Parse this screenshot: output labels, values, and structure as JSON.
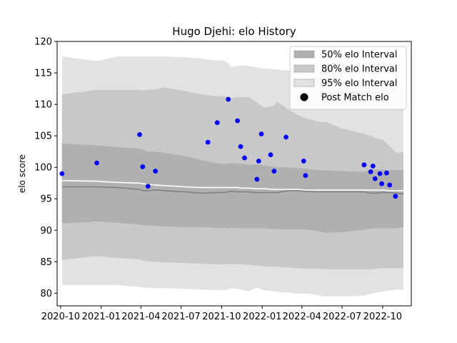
{
  "chart_data": {
    "type": "area",
    "title": "Hugo Djehi: elo History",
    "xlabel": "",
    "ylabel": "elo score",
    "ylim": [
      78,
      120
    ],
    "xlim": [
      "2020-09-23",
      "2022-12-05"
    ],
    "yticks": [
      80,
      85,
      90,
      95,
      100,
      105,
      110,
      115,
      120
    ],
    "xticks": [
      {
        "date": "2020-10-01",
        "label": "2020-10"
      },
      {
        "date": "2021-01-01",
        "label": "2021-01"
      },
      {
        "date": "2021-04-01",
        "label": "2021-04"
      },
      {
        "date": "2021-07-01",
        "label": "2021-07"
      },
      {
        "date": "2021-10-01",
        "label": "2021-10"
      },
      {
        "date": "2022-01-01",
        "label": "2022-01"
      },
      {
        "date": "2022-04-01",
        "label": "2022-04"
      },
      {
        "date": "2022-07-01",
        "label": "2022-07"
      },
      {
        "date": "2022-10-01",
        "label": "2022-10"
      }
    ],
    "legend_position": "upper right",
    "legend": [
      {
        "label": "50% elo Interval",
        "kind": "patch",
        "color": "#b0b0b0"
      },
      {
        "label": "80% elo Interval",
        "kind": "patch",
        "color": "#c8c8c8"
      },
      {
        "label": "95% elo Interval",
        "kind": "patch",
        "color": "#e2e2e2"
      },
      {
        "label": "Post Match elo",
        "kind": "marker",
        "color": "#000000"
      }
    ],
    "colors": {
      "band50": "#b0b0b0",
      "band80": "#c8c8c8",
      "band95": "#e2e2e2",
      "median_line": "#808080",
      "mean_line": "#ffffff",
      "points": "#0000ff"
    },
    "bands": {
      "x": [
        "2020-10-04",
        "2020-12-22",
        "2021-02-06",
        "2021-03-29",
        "2021-04-05",
        "2021-04-17",
        "2021-05-04",
        "2021-05-25",
        "2021-07-10",
        "2021-08-15",
        "2021-09-15",
        "2021-10-08",
        "2021-10-16",
        "2021-10-23",
        "2021-11-06",
        "2021-11-13",
        "2021-12-01",
        "2021-12-20",
        "2022-01-05",
        "2022-01-25",
        "2022-02-05",
        "2022-03-01",
        "2022-03-20",
        "2022-04-10",
        "2022-05-05",
        "2022-05-25",
        "2022-07-01",
        "2022-08-20",
        "2022-09-04",
        "2022-09-15",
        "2022-10-01",
        "2022-10-15",
        "2022-11-01",
        "2022-11-17"
      ],
      "p95_upper": [
        117.6,
        116.9,
        117.6,
        117.6,
        117.6,
        117.6,
        117.6,
        117.6,
        117.5,
        117.3,
        117.0,
        116.9,
        116.5,
        115.9,
        116.1,
        116.2,
        116.1,
        115.9,
        115.7,
        115.6,
        115.5,
        115.4,
        115.0,
        114.8,
        114.3,
        114.3,
        114.2,
        114.0,
        113.8,
        113.9,
        113.8,
        113.8,
        113.8,
        113.7
      ],
      "p95_lower": [
        81.3,
        81.3,
        81.3,
        81.0,
        80.9,
        80.9,
        80.8,
        80.8,
        80.7,
        80.6,
        80.5,
        80.5,
        80.6,
        80.8,
        80.7,
        80.6,
        80.3,
        80.9,
        80.5,
        80.3,
        80.2,
        80.1,
        79.9,
        80.0,
        79.7,
        79.5,
        79.5,
        79.6,
        79.9,
        80.1,
        80.3,
        80.4,
        80.6,
        80.6
      ],
      "p80_upper": [
        111.6,
        112.3,
        112.3,
        112.3,
        112.2,
        112.3,
        112.4,
        112.7,
        112.1,
        111.6,
        111.3,
        111.3,
        111.2,
        111.0,
        111.2,
        111.1,
        111.2,
        110.3,
        109.5,
        109.7,
        110.4,
        109.2,
        108.4,
        107.8,
        107.3,
        107.2,
        106.2,
        105.3,
        105.0,
        104.6,
        104.4,
        103.5,
        102.3,
        102.4
      ],
      "p80_lower": [
        85.3,
        85.9,
        85.6,
        85.4,
        85.2,
        85.1,
        85.0,
        84.9,
        84.8,
        84.7,
        84.6,
        84.6,
        84.6,
        84.7,
        84.6,
        84.6,
        84.5,
        84.4,
        84.3,
        84.2,
        84.2,
        84.1,
        84.0,
        83.9,
        83.9,
        83.8,
        83.8,
        83.8,
        83.8,
        83.9,
        84.0,
        84.0,
        84.0,
        84.0
      ],
      "p50_upper": [
        103.8,
        103.5,
        103.2,
        103.0,
        102.8,
        102.5,
        102.5,
        102.3,
        101.8,
        101.2,
        100.7,
        100.5,
        100.6,
        100.7,
        100.6,
        100.6,
        100.4,
        100.5,
        100.3,
        100.1,
        100.0,
        100.0,
        99.9,
        99.8,
        99.6,
        99.5,
        99.4,
        99.3,
        99.6,
        99.7,
        99.6,
        99.6,
        99.6,
        99.6
      ],
      "p50_lower": [
        91.1,
        91.4,
        91.2,
        90.9,
        90.8,
        90.8,
        90.7,
        90.6,
        90.5,
        90.5,
        90.4,
        90.4,
        90.3,
        90.4,
        90.4,
        90.3,
        90.3,
        90.3,
        90.3,
        90.2,
        90.2,
        90.1,
        90.2,
        90.1,
        89.9,
        89.6,
        89.7,
        90.1,
        90.3,
        90.3,
        90.3,
        90.3,
        90.3,
        90.5
      ],
      "median": [
        96.9,
        96.9,
        96.8,
        96.5,
        96.3,
        96.3,
        96.4,
        96.3,
        96.1,
        95.9,
        96.0,
        96.0,
        96.1,
        96.2,
        96.1,
        96.1,
        96.1,
        96.0,
        96.0,
        96.0,
        96.0,
        96.3,
        96.3,
        96.2,
        96.1,
        96.1,
        96.1,
        96.1,
        95.9,
        95.9,
        96.0,
        96.0,
        95.9,
        95.8
      ],
      "mean": [
        97.9,
        97.8,
        97.6,
        97.5,
        97.4,
        97.3,
        97.2,
        97.1,
        96.9,
        96.8,
        96.8,
        96.8,
        96.8,
        96.8,
        96.8,
        96.7,
        96.7,
        96.6,
        96.6,
        96.5,
        96.5,
        96.5,
        96.5,
        96.4,
        96.4,
        96.4,
        96.4,
        96.4,
        96.4,
        96.4,
        96.4,
        96.3,
        96.3,
        96.3
      ]
    },
    "points": [
      {
        "x": "2020-10-04",
        "y": 99.0
      },
      {
        "x": "2020-12-22",
        "y": 100.7
      },
      {
        "x": "2021-03-29",
        "y": 105.2
      },
      {
        "x": "2021-04-05",
        "y": 100.1
      },
      {
        "x": "2021-04-17",
        "y": 97.0
      },
      {
        "x": "2021-05-04",
        "y": 99.4
      },
      {
        "x": "2021-08-31",
        "y": 104.0
      },
      {
        "x": "2021-09-21",
        "y": 107.1
      },
      {
        "x": "2021-10-16",
        "y": 110.8
      },
      {
        "x": "2021-11-06",
        "y": 107.4
      },
      {
        "x": "2021-11-13",
        "y": 103.3
      },
      {
        "x": "2021-11-22",
        "y": 101.5
      },
      {
        "x": "2021-12-20",
        "y": 98.1
      },
      {
        "x": "2021-12-24",
        "y": 101.0
      },
      {
        "x": "2021-12-30",
        "y": 105.3
      },
      {
        "x": "2022-01-20",
        "y": 102.0
      },
      {
        "x": "2022-01-28",
        "y": 99.4
      },
      {
        "x": "2022-02-24",
        "y": 104.8
      },
      {
        "x": "2022-04-05",
        "y": 101.0
      },
      {
        "x": "2022-04-09",
        "y": 98.7
      },
      {
        "x": "2022-08-20",
        "y": 100.4
      },
      {
        "x": "2022-09-04",
        "y": 99.3
      },
      {
        "x": "2022-09-09",
        "y": 100.2
      },
      {
        "x": "2022-09-14",
        "y": 98.2
      },
      {
        "x": "2022-09-25",
        "y": 99.0
      },
      {
        "x": "2022-09-29",
        "y": 97.4
      },
      {
        "x": "2022-10-10",
        "y": 99.1
      },
      {
        "x": "2022-10-17",
        "y": 97.2
      },
      {
        "x": "2022-10-30",
        "y": 95.4
      }
    ]
  }
}
